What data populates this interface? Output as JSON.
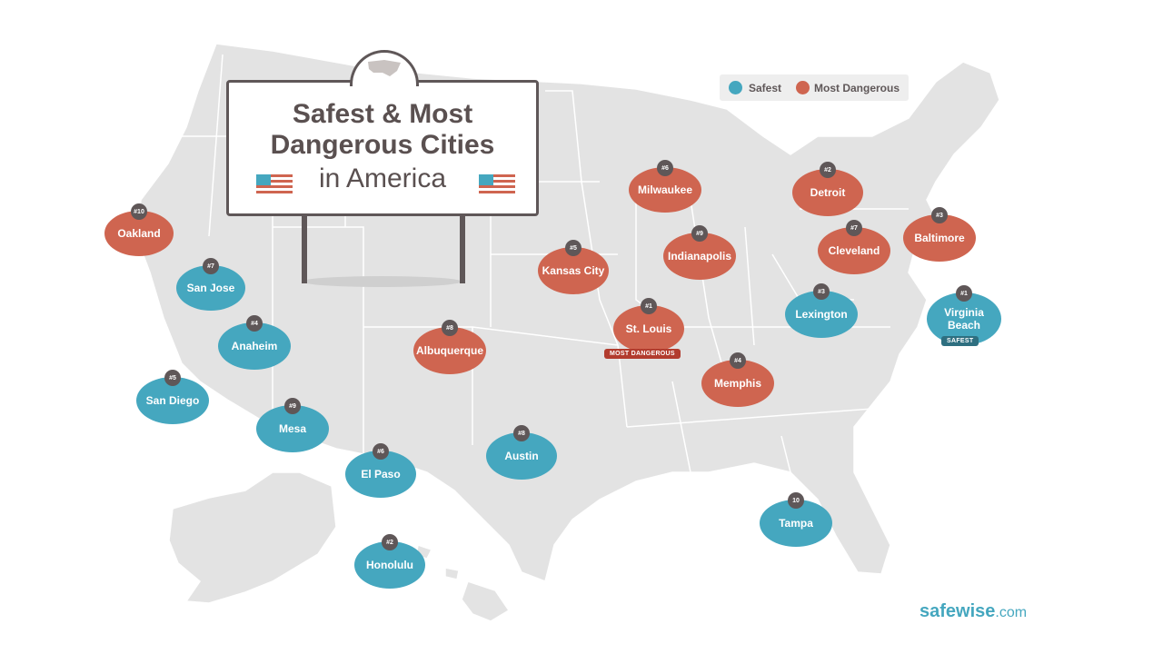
{
  "sign": {
    "title_line1": "Safest & Most",
    "title_line2": "Dangerous Cities",
    "title_line3": "in America"
  },
  "legend": {
    "safest_label": "Safest",
    "dangerous_label": "Most Dangerous",
    "safest_color": "#45a7bf",
    "dangerous_color": "#cf6550"
  },
  "cities": [
    {
      "name": "Oakland",
      "rank": "#10",
      "category": "dangerous"
    },
    {
      "name": "San Jose",
      "rank": "#7",
      "category": "safest"
    },
    {
      "name": "Anaheim",
      "rank": "#4",
      "category": "safest"
    },
    {
      "name": "San Diego",
      "rank": "#5",
      "category": "safest"
    },
    {
      "name": "Mesa",
      "rank": "#9",
      "category": "safest"
    },
    {
      "name": "El Paso",
      "rank": "#6",
      "category": "safest"
    },
    {
      "name": "Honolulu",
      "rank": "#2",
      "category": "safest"
    },
    {
      "name": "Albuquerque",
      "rank": "#8",
      "category": "dangerous"
    },
    {
      "name": "Austin",
      "rank": "#8",
      "category": "safest"
    },
    {
      "name": "Kansas City",
      "rank": "#5",
      "category": "dangerous"
    },
    {
      "name": "St. Louis",
      "rank": "#1",
      "category": "dangerous",
      "ribbon": "MOST DANGEROUS"
    },
    {
      "name": "Milwaukee",
      "rank": "#6",
      "category": "dangerous"
    },
    {
      "name": "Indianapolis",
      "rank": "#9",
      "category": "dangerous"
    },
    {
      "name": "Detroit",
      "rank": "#2",
      "category": "dangerous"
    },
    {
      "name": "Cleveland",
      "rank": "#7",
      "category": "dangerous"
    },
    {
      "name": "Baltimore",
      "rank": "#3",
      "category": "dangerous"
    },
    {
      "name": "Memphis",
      "rank": "#4",
      "category": "dangerous"
    },
    {
      "name": "Lexington",
      "rank": "#3",
      "category": "safest"
    },
    {
      "name": "Virginia Beach",
      "rank": "#1",
      "category": "safest",
      "ribbon": "SAFEST"
    },
    {
      "name": "Tampa",
      "rank": "10",
      "category": "safest"
    }
  ],
  "brand": {
    "name": "safewise",
    "suffix": ".com"
  }
}
